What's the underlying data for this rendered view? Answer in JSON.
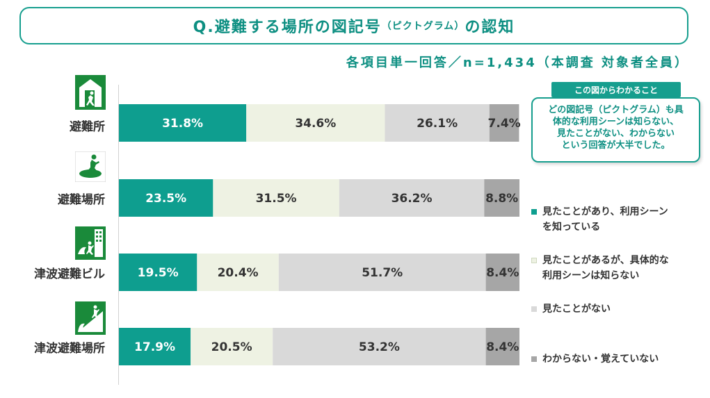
{
  "header": {
    "title_main": "Q.避難する場所の図記号",
    "title_small": "（ピクトグラム）",
    "title_end": "の認知",
    "subtitle": "各項目単一回答／n=1,434（本調査 対象者全員）"
  },
  "note": {
    "heading": "この図からわかること",
    "lines": [
      "どの図記号（ピクトグラム）も具",
      "体的な利用シーンは知らない、",
      "見たことがない、わからない",
      "という回答が大半でした。"
    ]
  },
  "colors": {
    "seen_know": "#0e9e8f",
    "seen_not_know": "#eef2e3",
    "not_seen": "#d9d9d9",
    "unknown": "#a6a6a6"
  },
  "chart_data": {
    "type": "bar",
    "orientation": "horizontal",
    "stacked": true,
    "percent": true,
    "categories": [
      "避難所",
      "避難場所",
      "津波避難ビル",
      "津波避難場所"
    ],
    "series": [
      {
        "name": "見たことがあり、利用シーンを知っている",
        "values": [
          31.8,
          23.5,
          19.5,
          17.9
        ]
      },
      {
        "name": "見たことがあるが、具体的な利用シーンは知らない",
        "values": [
          34.6,
          31.5,
          20.4,
          20.5
        ]
      },
      {
        "name": "見たことがない",
        "values": [
          26.1,
          36.2,
          51.7,
          53.2
        ]
      },
      {
        "name": "わからない・覚えていない",
        "values": [
          7.4,
          8.8,
          8.4,
          8.4
        ]
      }
    ],
    "xlim": [
      0,
      100
    ],
    "legend_position": "right",
    "grid": false
  },
  "legend_lines": [
    [
      "見たことがあり、利用シーン",
      "を知っている"
    ],
    [
      "見たことがあるが、具体的な",
      "利用シーンは知らない"
    ],
    [
      "見たことがない"
    ],
    [
      "わからない・覚えていない"
    ]
  ]
}
